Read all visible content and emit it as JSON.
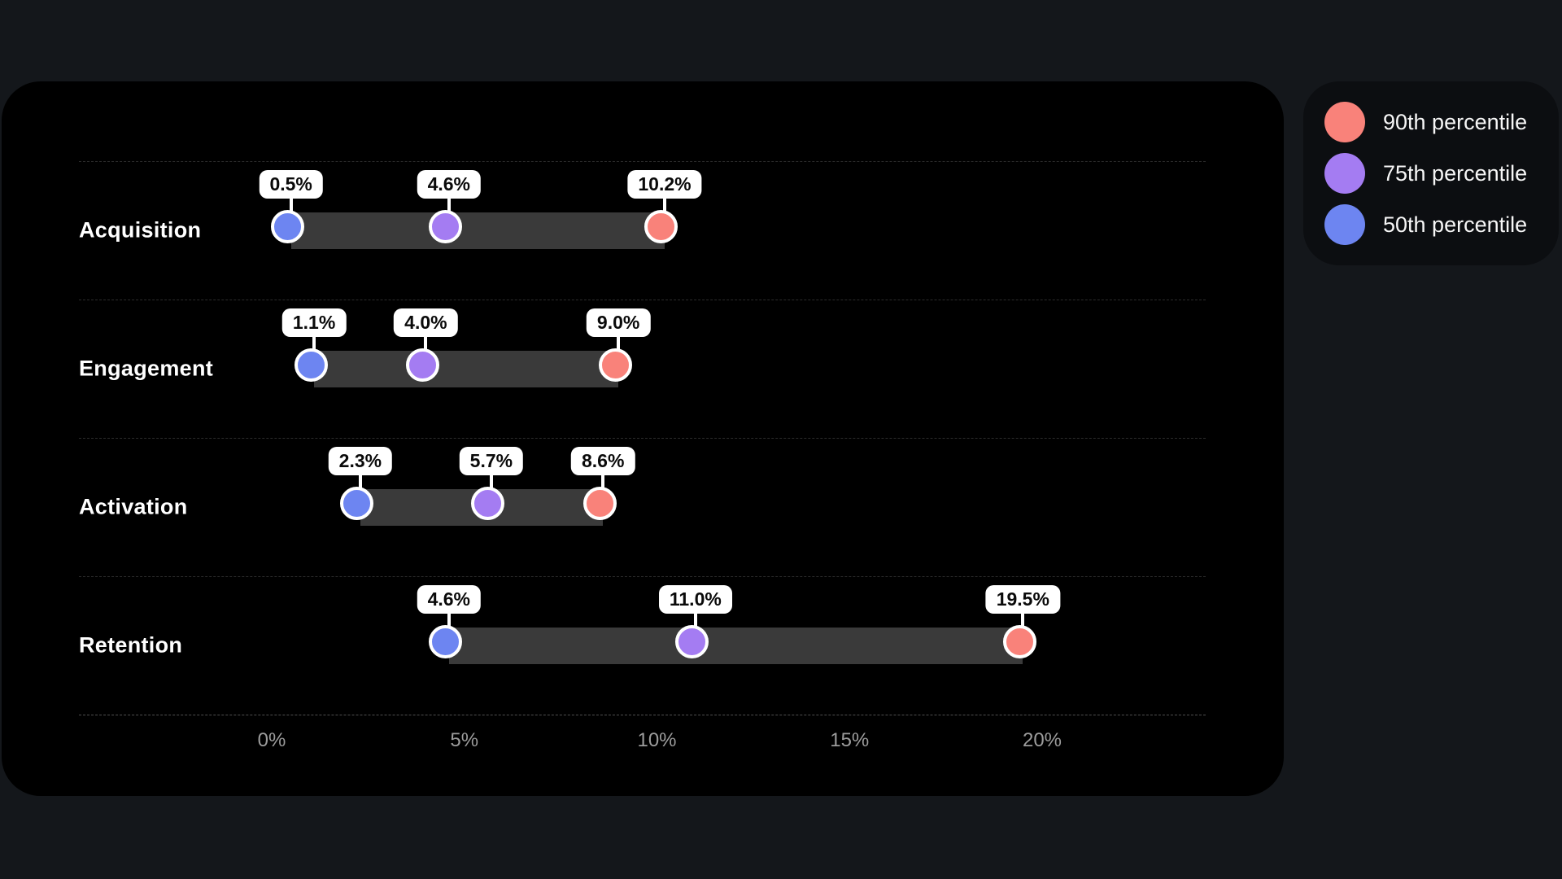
{
  "chart_data": {
    "type": "dumbbell",
    "title": "",
    "categories": [
      "Acquisition",
      "Engagement",
      "Activation",
      "Retention"
    ],
    "series": [
      {
        "name": "50th percentile",
        "color": "#6d85f1",
        "values": [
          0.5,
          1.1,
          2.3,
          4.6
        ],
        "labels": [
          "0.5%",
          "1.1%",
          "2.3%",
          "4.6%"
        ]
      },
      {
        "name": "75th percentile",
        "color": "#a47cf2",
        "values": [
          4.6,
          4.0,
          5.7,
          11.0
        ],
        "labels": [
          "4.6%",
          "4.0%",
          "5.7%",
          "11.0%"
        ]
      },
      {
        "name": "90th percentile",
        "color": "#f9827a",
        "values": [
          10.2,
          9.0,
          8.6,
          19.5
        ],
        "labels": [
          "10.2%",
          "9.0%",
          "8.6%",
          "19.5%"
        ]
      }
    ],
    "x_axis": {
      "ticks": [
        0,
        5,
        10,
        15,
        20
      ],
      "tick_labels": [
        "0%",
        "5%",
        "10%",
        "15%",
        "20%"
      ],
      "range": [
        0,
        24.2
      ],
      "grid": false
    },
    "legend_position": "top-right"
  },
  "legend": {
    "items": [
      {
        "label": "90th percentile",
        "color": "#f9827a"
      },
      {
        "label": "75th percentile",
        "color": "#a47cf2"
      },
      {
        "label": "50th percentile",
        "color": "#6d85f1"
      }
    ]
  }
}
